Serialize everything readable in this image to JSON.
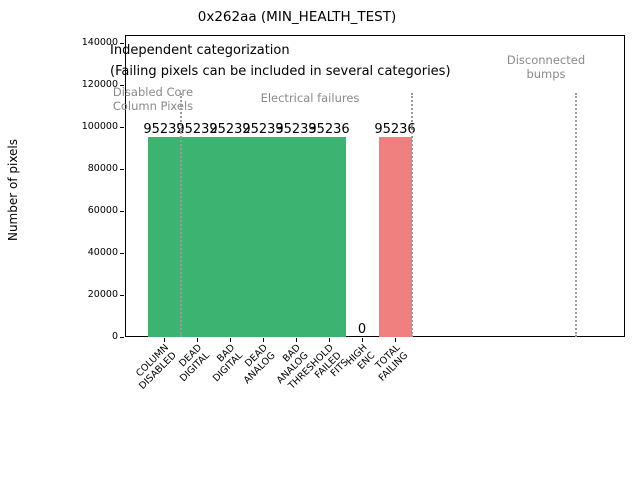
{
  "figure": {
    "title": "0x262aa (MIN_HEALTH_TEST)",
    "ylabel": "Number of pixels"
  },
  "annotations": {
    "independent": "Independent categorization",
    "failing_note": "(Failing pixels can be included in several categories)",
    "group_disabled_line1": "Disabled Core",
    "group_disabled_line2": "Column Pixels",
    "group_electrical": "Electrical failures",
    "group_bumps_line1": "Disconnected",
    "group_bumps_line2": "bumps"
  },
  "chart_data": {
    "type": "bar",
    "title": "0x262aa (MIN_HEALTH_TEST)",
    "xlabel": "",
    "ylabel": "Number of pixels",
    "ylim": [
      0,
      140000
    ],
    "ytick_labels": [
      "0",
      "20000",
      "40000",
      "60000",
      "80000",
      "100000",
      "120000",
      "140000"
    ],
    "grid": false,
    "legend": "none",
    "categories": [
      "COLUMN DISABLED",
      "DEAD DIGITAL",
      "BAD DIGITAL",
      "DEAD ANALOG",
      "BAD ANALOG",
      "THRESHOLD FAILED FITS",
      "HIGH ENC",
      "TOTAL FAILING"
    ],
    "category_label_lines": [
      [
        "COLUMN",
        "DISABLED"
      ],
      [
        "DEAD",
        "DIGITAL"
      ],
      [
        "BAD",
        "DIGITAL"
      ],
      [
        "DEAD",
        "ANALOG"
      ],
      [
        "BAD",
        "ANALOG"
      ],
      [
        "THRESHOLD",
        "FAILED",
        "FITS"
      ],
      [
        "HIGH",
        "ENC"
      ],
      [
        "TOTAL",
        "FAILING"
      ]
    ],
    "values": [
      95232,
      95232,
      95232,
      95233,
      95233,
      95236,
      0,
      95236
    ],
    "bar_value_labels": [
      "95232",
      "95232",
      "95232",
      "95233",
      "95233",
      "95236",
      "0",
      "95236"
    ],
    "bar_colors": [
      "#3cb371",
      "#3cb371",
      "#3cb371",
      "#3cb371",
      "#3cb371",
      "#3cb371",
      "#3cb371",
      "#f08080"
    ],
    "annotation_groups": [
      "Disabled Core Column Pixels",
      "Electrical failures",
      "Disconnected bumps"
    ],
    "colors": {
      "green_bar": "#3cb371",
      "red_bar": "#f08080",
      "gray_annotation": "#8a8a8a",
      "separator_line": "#9a9a9a"
    }
  }
}
